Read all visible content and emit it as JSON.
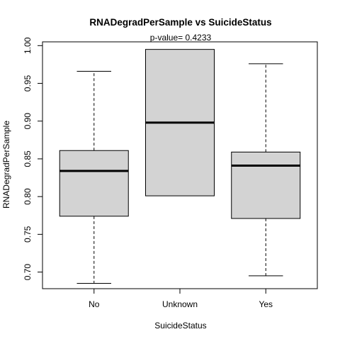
{
  "chart_data": {
    "type": "boxplot",
    "title": "RNADegradPerSample  vs  SuicideStatus",
    "subtitle": "p-value= 0.4233",
    "xlabel": "SuicideStatus",
    "ylabel": "RNADegradPerSample",
    "ylim": [
      0.678,
      1.005
    ],
    "yticks": [
      0.7,
      0.75,
      0.8,
      0.85,
      0.9,
      0.95,
      1.0
    ],
    "ytick_labels": [
      "0.70",
      "0.75",
      "0.80",
      "0.85",
      "0.90",
      "0.95",
      "1.00"
    ],
    "grid": false,
    "colors": {
      "box_fill": "#d3d3d3",
      "stroke": "#000000"
    },
    "groups": [
      {
        "label": "No",
        "min": 0.685,
        "q1": 0.774,
        "median": 0.834,
        "q3": 0.861,
        "max": 0.966
      },
      {
        "label": "Unknown",
        "min": 0.801,
        "q1": 0.801,
        "median": 0.898,
        "q3": 0.995,
        "max": 0.995
      },
      {
        "label": "Yes",
        "min": 0.695,
        "q1": 0.771,
        "median": 0.841,
        "q3": 0.859,
        "max": 0.976
      }
    ]
  }
}
